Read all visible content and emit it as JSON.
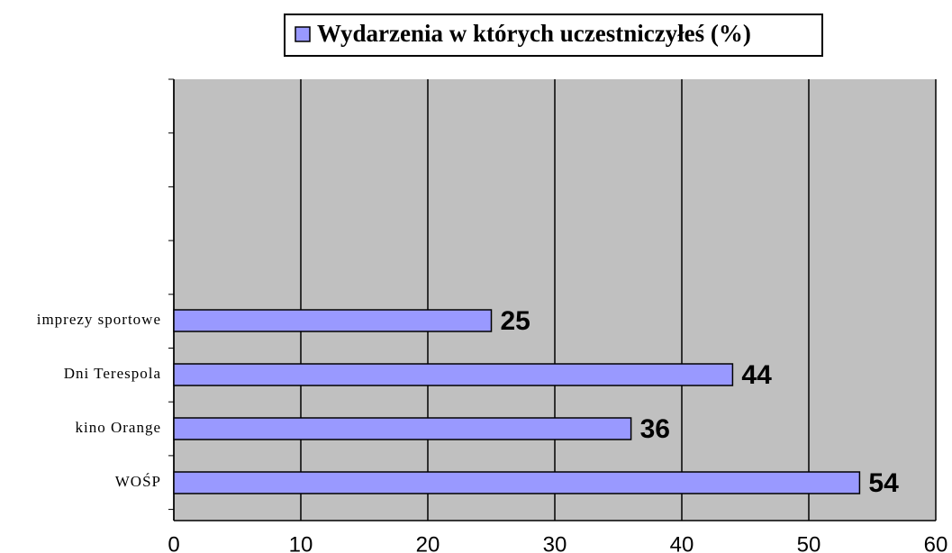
{
  "chart_data": {
    "type": "bar",
    "orientation": "horizontal",
    "categories": [
      "imprezy sportowe",
      "Dni Terespola",
      "kino Orange",
      "WOŚP"
    ],
    "series": [
      {
        "name": "Wydarzenia w których uczestniczyłeś (%)",
        "color": "#9999ff",
        "values": [
          25,
          44,
          36,
          54
        ]
      }
    ],
    "xlim": [
      0,
      60
    ],
    "xticks": [
      0,
      10,
      20,
      30,
      40,
      50,
      60
    ],
    "grid": true
  }
}
